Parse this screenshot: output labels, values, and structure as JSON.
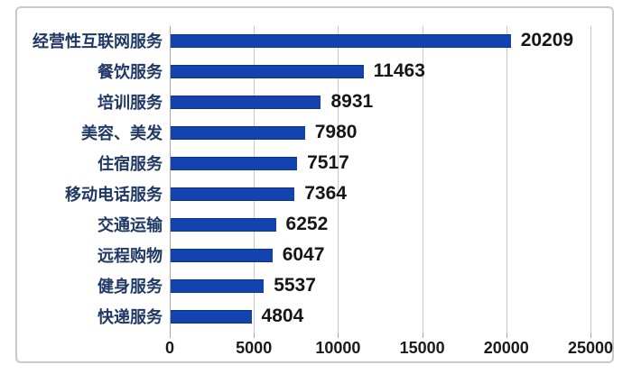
{
  "chart_data": {
    "type": "bar",
    "orientation": "horizontal",
    "title": "",
    "categories": [
      "经营性互联网服务",
      "餐饮服务",
      "培训服务",
      "美容、美发",
      "住宿服务",
      "移动电话服务",
      "交通运输",
      "远程购物",
      "健身服务",
      "快递服务"
    ],
    "values": [
      20209,
      11463,
      8931,
      7980,
      7517,
      7364,
      6252,
      6047,
      5537,
      4804
    ],
    "value_labels_shown": true,
    "xlabel": "",
    "ylabel": "",
    "xlim": [
      0,
      25000
    ],
    "xticks": [
      0,
      5000,
      10000,
      15000,
      20000,
      25000
    ],
    "grid": true,
    "legend": "none",
    "bar_color": "#1243ae",
    "gridline_color": "#c9c9c9",
    "axis_line_color": "#a6a6a6",
    "category_label_color": "#1f3864",
    "value_label_color": "#161616",
    "tick_label_color": "#1a1a1a",
    "frame_border_color": "#c9c9c9"
  }
}
